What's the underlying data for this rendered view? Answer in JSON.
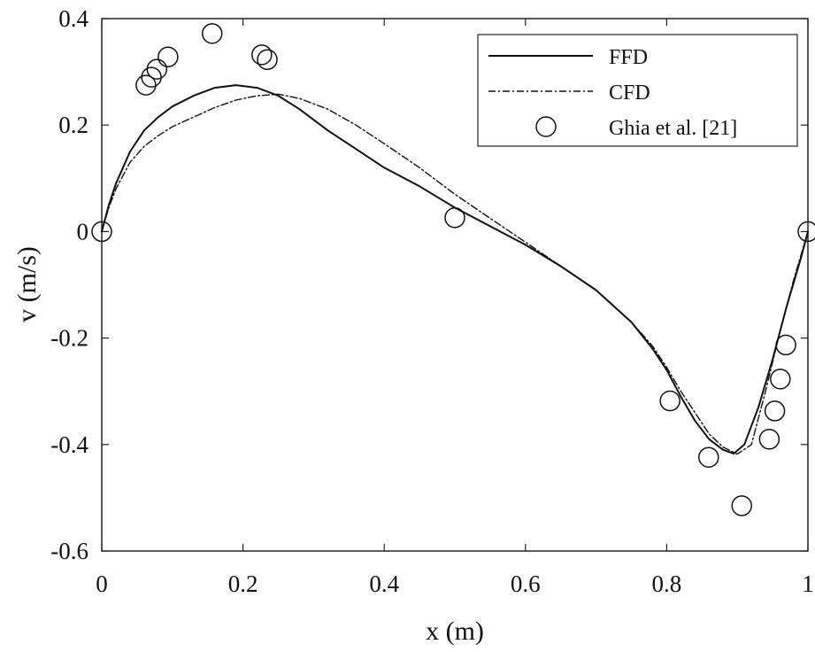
{
  "chart_data": {
    "type": "line",
    "xlabel": "x (m)",
    "ylabel": "v (m/s)",
    "xlim": [
      0,
      1
    ],
    "ylim": [
      -0.6,
      0.4
    ],
    "x_ticks": [
      "0",
      "0.2",
      "0.4",
      "0.6",
      "0.8",
      "1"
    ],
    "y_ticks": [
      "0.4",
      "0.2",
      "0",
      "-0.2",
      "-0.4",
      "-0.6"
    ],
    "grid": false,
    "legend_position": "top-right",
    "series": [
      {
        "name": "FFD",
        "style": "solid",
        "x": [
          0,
          0.01,
          0.02,
          0.04,
          0.06,
          0.08,
          0.1,
          0.13,
          0.16,
          0.19,
          0.22,
          0.25,
          0.28,
          0.32,
          0.36,
          0.4,
          0.45,
          0.5,
          0.55,
          0.6,
          0.65,
          0.7,
          0.75,
          0.78,
          0.8,
          0.82,
          0.84,
          0.86,
          0.88,
          0.895,
          0.91,
          0.93,
          0.95,
          0.97,
          0.99,
          1.0
        ],
        "y": [
          0.0,
          0.05,
          0.09,
          0.15,
          0.19,
          0.215,
          0.235,
          0.255,
          0.27,
          0.275,
          0.27,
          0.255,
          0.23,
          0.19,
          0.155,
          0.12,
          0.085,
          0.045,
          0.01,
          -0.025,
          -0.065,
          -0.11,
          -0.17,
          -0.22,
          -0.26,
          -0.31,
          -0.355,
          -0.39,
          -0.41,
          -0.417,
          -0.4,
          -0.33,
          -0.24,
          -0.14,
          -0.05,
          0.0
        ]
      },
      {
        "name": "CFD",
        "style": "dash-dot",
        "x": [
          0,
          0.01,
          0.02,
          0.04,
          0.06,
          0.08,
          0.1,
          0.13,
          0.16,
          0.19,
          0.22,
          0.25,
          0.28,
          0.32,
          0.36,
          0.4,
          0.45,
          0.5,
          0.55,
          0.6,
          0.65,
          0.7,
          0.75,
          0.78,
          0.8,
          0.82,
          0.84,
          0.86,
          0.88,
          0.9,
          0.92,
          0.94,
          0.96,
          0.98,
          1.0
        ],
        "y": [
          0.0,
          0.045,
          0.08,
          0.13,
          0.16,
          0.18,
          0.197,
          0.215,
          0.233,
          0.247,
          0.255,
          0.258,
          0.25,
          0.23,
          0.2,
          0.165,
          0.12,
          0.07,
          0.025,
          -0.02,
          -0.065,
          -0.11,
          -0.17,
          -0.215,
          -0.255,
          -0.3,
          -0.34,
          -0.38,
          -0.405,
          -0.418,
          -0.4,
          -0.3,
          -0.19,
          -0.09,
          0.0
        ]
      },
      {
        "name": "Ghia et al. [21]",
        "style": "markers",
        "x": [
          0.0,
          0.0625,
          0.0703,
          0.0781,
          0.0938,
          0.1563,
          0.2266,
          0.2344,
          0.5,
          0.8047,
          0.8594,
          0.9063,
          0.9453,
          0.9531,
          0.9609,
          0.9688,
          1.0
        ],
        "y": [
          0.0,
          0.275,
          0.29,
          0.305,
          0.328,
          0.372,
          0.332,
          0.323,
          0.026,
          -0.318,
          -0.424,
          -0.515,
          -0.39,
          -0.337,
          -0.277,
          -0.213,
          0.0
        ]
      }
    ]
  }
}
